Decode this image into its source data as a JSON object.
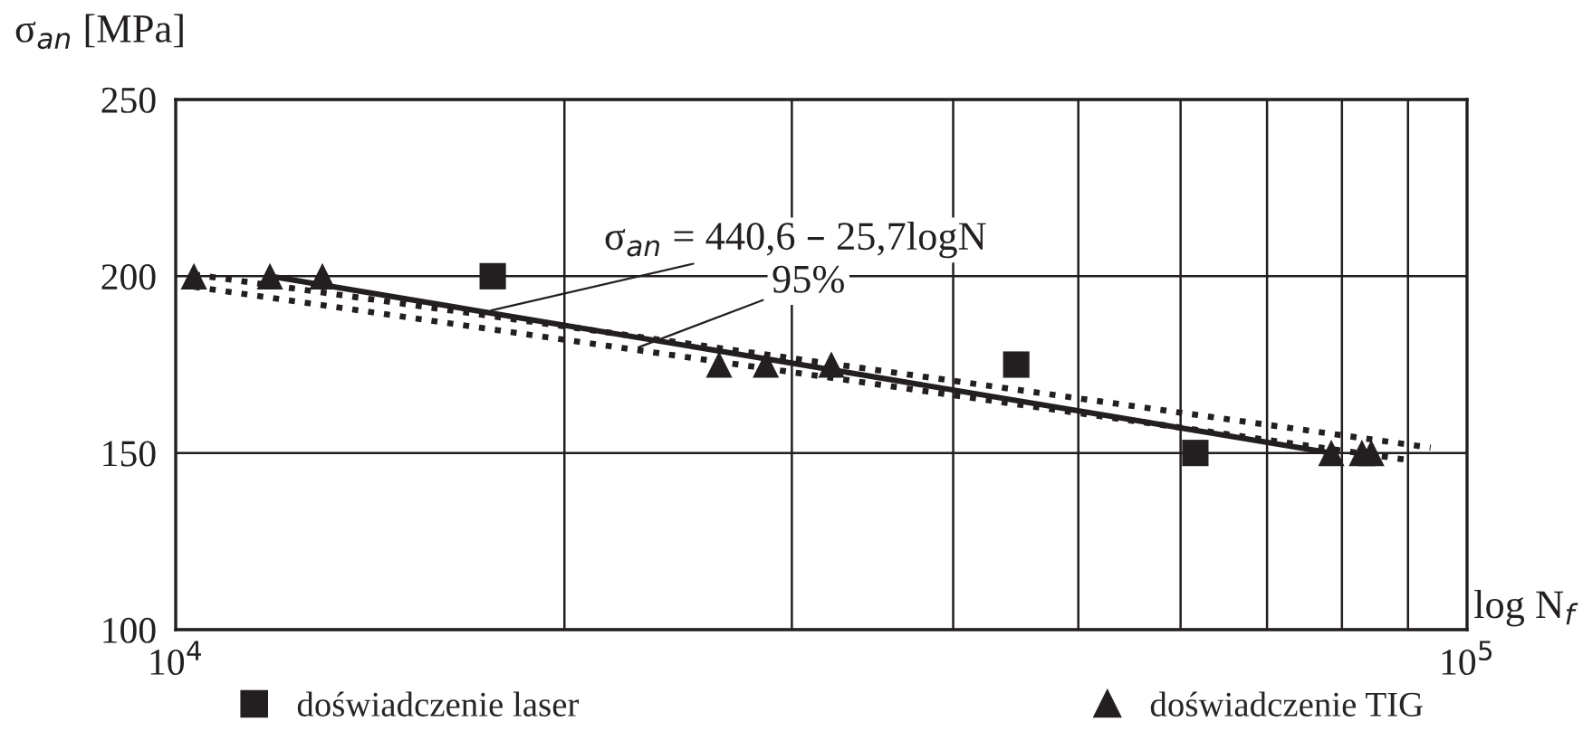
{
  "chart_data": {
    "type": "scatter",
    "ylabel": "σ$_{an}$ [MPa]",
    "xlabel": "log N$_{f}$",
    "log": "x",
    "xlim": [
      10000,
      100000
    ],
    "ylim": [
      100,
      250
    ],
    "xticks": [
      {
        "value": 10000,
        "label": "10$^{4}$"
      },
      {
        "value": 20000,
        "label": null
      },
      {
        "value": 30000,
        "label": null
      },
      {
        "value": 40000,
        "label": null
      },
      {
        "value": 50000,
        "label": null
      },
      {
        "value": 60000,
        "label": null
      },
      {
        "value": 70000,
        "label": null
      },
      {
        "value": 80000,
        "label": null
      },
      {
        "value": 90000,
        "label": null
      },
      {
        "value": 100000,
        "label": "10$^{5}$"
      }
    ],
    "yticks": [
      100,
      150,
      200,
      250
    ],
    "grid": true,
    "legend": "bottom",
    "series": [
      {
        "name": "doświadczenie laser",
        "marker": "square",
        "color": "#231f20",
        "x": [
          17600,
          44760,
          61600
        ],
        "values": [
          200,
          175,
          150
        ]
      },
      {
        "name": "doświadczenie TIG",
        "marker": "triangle",
        "color": "#231f20",
        "x": [
          10330,
          11830,
          12990,
          26350,
          28640,
          32190,
          78500,
          82900,
          84300
        ],
        "values": [
          200,
          200,
          200,
          175,
          175,
          175,
          150,
          150,
          150
        ]
      },
      {
        "type": "line",
        "line_style": "solid",
        "color": "#231f20",
        "x": [
          11830,
          78500
        ],
        "values": [
          200,
          150
        ]
      },
      {
        "type": "line",
        "line_style": "dotted",
        "color": "#231f20",
        "x": [
          10330,
          93700
        ],
        "values": [
          200.5,
          151.5
        ]
      },
      {
        "type": "line",
        "line_style": "dotted",
        "color": "#231f20",
        "x": [
          10330,
          90000
        ],
        "values": [
          197,
          148
        ]
      }
    ],
    "annotations": [
      {
        "text": "σ$_{an}$ = 440,6 – 25,7logN",
        "x": 17400,
        "y": 190
      },
      {
        "text": "95%",
        "x": 22640,
        "y": 179.4
      }
    ]
  }
}
